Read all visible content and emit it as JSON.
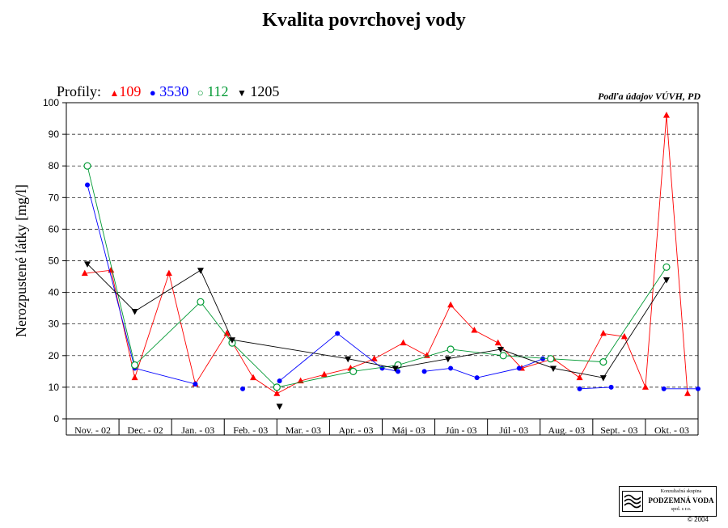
{
  "title": "Kvalita povrchovej vody",
  "source_note": "Podľa údajov VÚVH, PD",
  "legend": {
    "label": "Profily:",
    "items": [
      {
        "symbol": "▲",
        "name": "109",
        "color": "#ff0000"
      },
      {
        "symbol": "●",
        "name": "3530",
        "color": "#0000ff"
      },
      {
        "symbol": "○",
        "name": "112",
        "color": "#009933"
      },
      {
        "symbol": "▼",
        "name": "1205",
        "color": "#000000"
      }
    ]
  },
  "logo": {
    "line1": "Konzultačná skupina",
    "line2": "PODZEMNÁ VODA",
    "line3": "spol. s r.o.",
    "copyright": "© 2004"
  },
  "chart_data": {
    "type": "line",
    "title": "Kvalita povrchovej vody",
    "ylabel": "Nerozpustené látky  [mg/l]",
    "xlabel": "",
    "ylim": [
      0,
      100
    ],
    "yticks": [
      0,
      10,
      20,
      30,
      40,
      50,
      60,
      70,
      80,
      90,
      100
    ],
    "grid": "horizontal dashed",
    "xlim": [
      0,
      12
    ],
    "categories": [
      "Nov. - 02",
      "Dec. - 02",
      "Jan. - 03",
      "Feb. - 03",
      "Mar. - 03",
      "Apr. - 03",
      "Máj - 03",
      "Jún - 03",
      "Júl - 03",
      "Aug. - 03",
      "Sept. - 03",
      "Okt. - 03"
    ],
    "series": [
      {
        "name": "109",
        "color": "#ff0000",
        "marker": "triangle-up",
        "segments": [
          [
            [
              0.35,
              46
            ],
            [
              0.85,
              47
            ],
            [
              1.3,
              13
            ],
            [
              1.95,
              46
            ],
            [
              2.45,
              11
            ],
            [
              3.05,
              27
            ],
            [
              3.55,
              13
            ],
            [
              4.0,
              8
            ],
            [
              4.45,
              12
            ],
            [
              4.9,
              14
            ],
            [
              5.4,
              16
            ],
            [
              5.85,
              19
            ],
            [
              6.4,
              24
            ],
            [
              6.85,
              20
            ],
            [
              7.3,
              36
            ],
            [
              7.75,
              28
            ],
            [
              8.2,
              24
            ],
            [
              8.65,
              16
            ],
            [
              9.25,
              19
            ],
            [
              9.75,
              13
            ],
            [
              10.2,
              27
            ],
            [
              10.6,
              26
            ],
            [
              11.0,
              10
            ],
            [
              11.4,
              96
            ],
            [
              11.8,
              8
            ]
          ]
        ]
      },
      {
        "name": "3530",
        "color": "#0000ff",
        "marker": "circle-filled",
        "segments": [
          [
            [
              0.4,
              74
            ],
            [
              1.3,
              16
            ],
            [
              2.45,
              11
            ]
          ],
          [
            [
              3.35,
              9.5
            ]
          ],
          [
            [
              4.05,
              12
            ],
            [
              5.15,
              27
            ],
            [
              6.0,
              16
            ],
            [
              6.3,
              15
            ]
          ],
          [
            [
              6.8,
              15
            ],
            [
              7.3,
              16
            ],
            [
              7.8,
              13
            ],
            [
              8.6,
              16
            ],
            [
              9.05,
              19
            ]
          ],
          [
            [
              9.75,
              9.5
            ],
            [
              10.35,
              10
            ]
          ],
          [
            [
              11.35,
              9.5
            ],
            [
              12.0,
              9.5
            ]
          ]
        ]
      },
      {
        "name": "112",
        "color": "#009933",
        "marker": "circle-open",
        "segments": [
          [
            [
              0.4,
              80
            ],
            [
              1.3,
              17
            ],
            [
              2.55,
              37
            ],
            [
              3.15,
              24
            ],
            [
              4.0,
              10
            ],
            [
              5.45,
              15
            ],
            [
              6.3,
              17
            ],
            [
              7.3,
              22
            ],
            [
              8.3,
              20
            ],
            [
              9.2,
              19
            ],
            [
              10.2,
              18
            ],
            [
              11.4,
              48
            ]
          ]
        ]
      },
      {
        "name": "1205",
        "color": "#000000",
        "marker": "triangle-down",
        "segments": [
          [
            [
              0.4,
              49
            ],
            [
              1.3,
              34
            ],
            [
              2.55,
              47
            ],
            [
              3.15,
              25
            ],
            [
              5.35,
              19
            ],
            [
              6.25,
              16
            ],
            [
              7.25,
              19
            ],
            [
              8.25,
              22
            ],
            [
              9.25,
              16
            ],
            [
              10.2,
              13
            ],
            [
              11.4,
              44
            ]
          ]
        ],
        "extra_points": [
          [
            4.05,
            4
          ]
        ]
      }
    ]
  }
}
